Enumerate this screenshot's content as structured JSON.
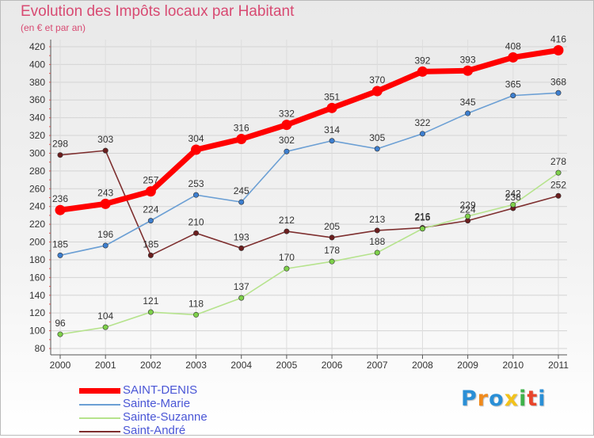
{
  "chart_data": {
    "type": "line",
    "title": "Evolution des Impôts locaux par Habitant",
    "subtitle": "(en € et par an)",
    "categories": [
      "2000",
      "2001",
      "2002",
      "2003",
      "2004",
      "2005",
      "2006",
      "2007",
      "2008",
      "2009",
      "2010",
      "2011"
    ],
    "ylim": [
      80,
      420
    ],
    "yticks": [
      "80",
      "100",
      "120",
      "140",
      "160",
      "180",
      "200",
      "220",
      "240",
      "260",
      "280",
      "300",
      "320",
      "340",
      "360",
      "380",
      "400",
      "420"
    ],
    "grid": true,
    "legend_position": "bottom-left",
    "series": [
      {
        "name": "SAINT-DENIS",
        "color": "#ff0000",
        "marker": "#ff0000",
        "values": [
          236,
          243,
          257,
          304,
          316,
          332,
          351,
          370,
          392,
          393,
          408,
          416
        ]
      },
      {
        "name": "Sainte-Marie",
        "color": "#6b9fd4",
        "marker": "#3d7fd0",
        "values": [
          185,
          196,
          224,
          253,
          245,
          302,
          314,
          305,
          322,
          345,
          365,
          368
        ]
      },
      {
        "name": "Sainte-Suzanne",
        "color": "#b6e38d",
        "marker": "#7ed14a",
        "values": [
          96,
          104,
          121,
          118,
          137,
          170,
          178,
          188,
          215,
          229,
          242,
          278
        ]
      },
      {
        "name": "Saint-André",
        "color": "#7e2f2f",
        "marker": "#6b1e1e",
        "values": [
          298,
          303,
          185,
          210,
          193,
          212,
          205,
          213,
          216,
          224,
          238,
          252
        ]
      }
    ]
  },
  "logo": {
    "letters": [
      "P",
      "r",
      "o",
      "x",
      "i",
      "t",
      "i"
    ],
    "colors": [
      "#2a8fd6",
      "#f08a1c",
      "#2a8fd6",
      "#f2c21a",
      "#3fb24a",
      "#e8452c",
      "#2a8fd6"
    ]
  }
}
